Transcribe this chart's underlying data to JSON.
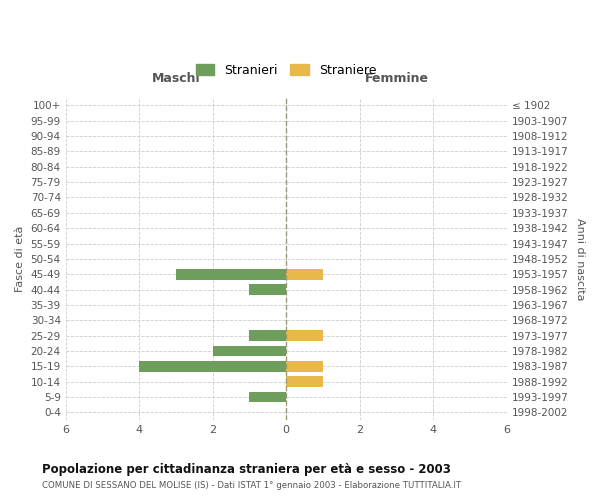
{
  "age_groups": [
    "0-4",
    "5-9",
    "10-14",
    "15-19",
    "20-24",
    "25-29",
    "30-34",
    "35-39",
    "40-44",
    "45-49",
    "50-54",
    "55-59",
    "60-64",
    "65-69",
    "70-74",
    "75-79",
    "80-84",
    "85-89",
    "90-94",
    "95-99",
    "100+"
  ],
  "birth_years": [
    "1998-2002",
    "1993-1997",
    "1988-1992",
    "1983-1987",
    "1978-1982",
    "1973-1977",
    "1968-1972",
    "1963-1967",
    "1958-1962",
    "1953-1957",
    "1948-1952",
    "1943-1947",
    "1938-1942",
    "1933-1937",
    "1928-1932",
    "1923-1927",
    "1918-1922",
    "1913-1917",
    "1908-1912",
    "1903-1907",
    "≤ 1902"
  ],
  "males": [
    0,
    1,
    0,
    4,
    2,
    1,
    0,
    0,
    1,
    3,
    0,
    0,
    0,
    0,
    0,
    0,
    0,
    0,
    0,
    0,
    0
  ],
  "females": [
    0,
    0,
    1,
    1,
    0,
    1,
    0,
    0,
    0,
    1,
    0,
    0,
    0,
    0,
    0,
    0,
    0,
    0,
    0,
    0,
    0
  ],
  "male_color": "#6d9e5b",
  "female_color": "#e8b84b",
  "title": "Popolazione per cittadinanza straniera per età e sesso - 2003",
  "subtitle": "COMUNE DI SESSANO DEL MOLISE (IS) - Dati ISTAT 1° gennaio 2003 - Elaborazione TUTTITALIA.IT",
  "legend_male": "Stranieri",
  "legend_female": "Straniere",
  "xlabel_left": "Maschi",
  "xlabel_right": "Femmine",
  "ylabel_left": "Fasce di età",
  "ylabel_right": "Anni di nascita",
  "xlim": 6,
  "background_color": "#ffffff",
  "grid_color": "#cccccc"
}
